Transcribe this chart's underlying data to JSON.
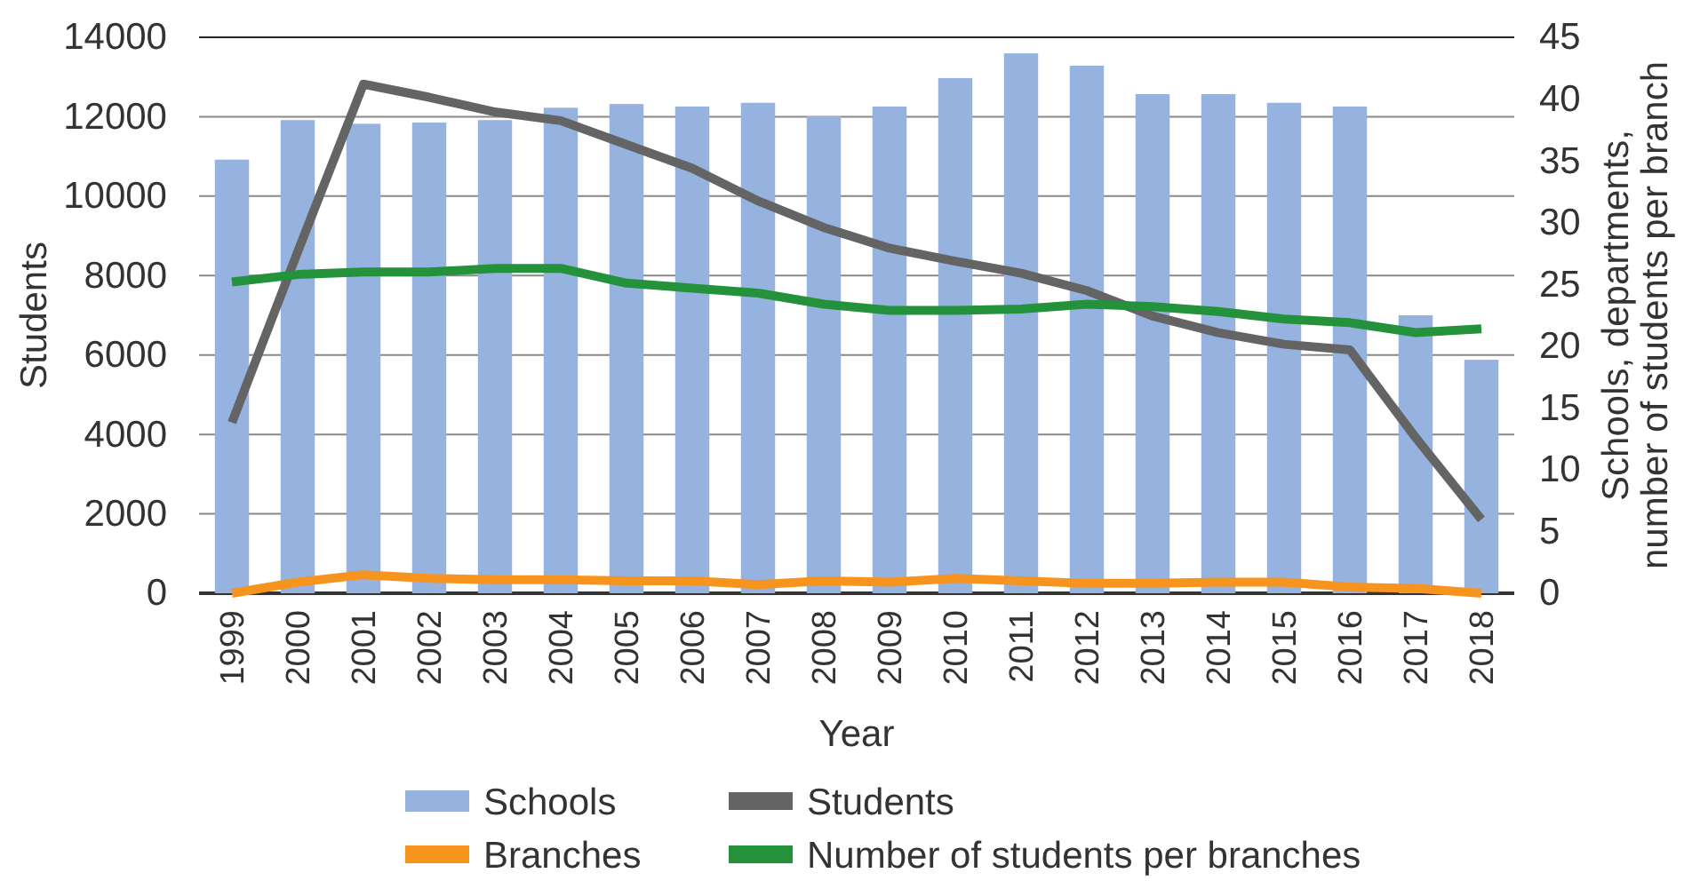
{
  "chart_data": {
    "type": "bar",
    "xlabel": "Year",
    "ylabel": "Students",
    "y2label": "Schools, departments,\nnumber of students per branch",
    "categories": [
      "1999",
      "2000",
      "2001",
      "2002",
      "2003",
      "2004",
      "2005",
      "2006",
      "2007",
      "2008",
      "2009",
      "2010",
      "2011",
      "2012",
      "2013",
      "2014",
      "2015",
      "2016",
      "2017",
      "2018"
    ],
    "series": [
      {
        "name": "Schools",
        "axis": "y2",
        "color": "#95b3de",
        "values": [
          35.1,
          38.3,
          38.0,
          38.1,
          38.3,
          39.3,
          39.6,
          39.4,
          39.7,
          38.6,
          39.4,
          41.7,
          43.7,
          42.7,
          40.4,
          40.4,
          39.7,
          39.4,
          22.5,
          18.9
        ]
      },
      {
        "name": "Students",
        "type": "line",
        "color": "#646464",
        "values": [
          4300,
          8600,
          12820,
          12490,
          12120,
          11900,
          11300,
          10700,
          9880,
          9210,
          8690,
          8360,
          8060,
          7620,
          6980,
          6560,
          6270,
          6130,
          3920,
          1860
        ]
      },
      {
        "name": "Branches",
        "type": "line",
        "axis": "y2",
        "color": "#f7941d",
        "values": [
          0,
          0.9,
          1.5,
          1.2,
          1.1,
          1.1,
          1.0,
          1.0,
          0.7,
          1.0,
          0.9,
          1.2,
          1.0,
          0.8,
          0.8,
          0.9,
          0.9,
          0.5,
          0.4,
          0
        ]
      },
      {
        "name": "Number of students per branches",
        "type": "line",
        "axis": "y2",
        "color": "#23923a",
        "values": [
          25.2,
          25.8,
          26.0,
          26.0,
          26.3,
          26.3,
          25.1,
          24.7,
          24.3,
          23.4,
          22.9,
          22.9,
          23.0,
          23.4,
          23.2,
          22.8,
          22.2,
          21.9,
          21.1,
          21.4
        ]
      }
    ],
    "ylim": [
      0,
      14000
    ],
    "yticks": [
      0,
      2000,
      4000,
      6000,
      8000,
      10000,
      12000,
      14000
    ],
    "y2lim": [
      0,
      45
    ],
    "y2ticks": [
      0,
      5,
      10,
      15,
      20,
      25,
      30,
      35,
      40,
      45
    ],
    "grid": "y",
    "legend": "bottom",
    "marker": "none",
    "line_style": "solid"
  }
}
